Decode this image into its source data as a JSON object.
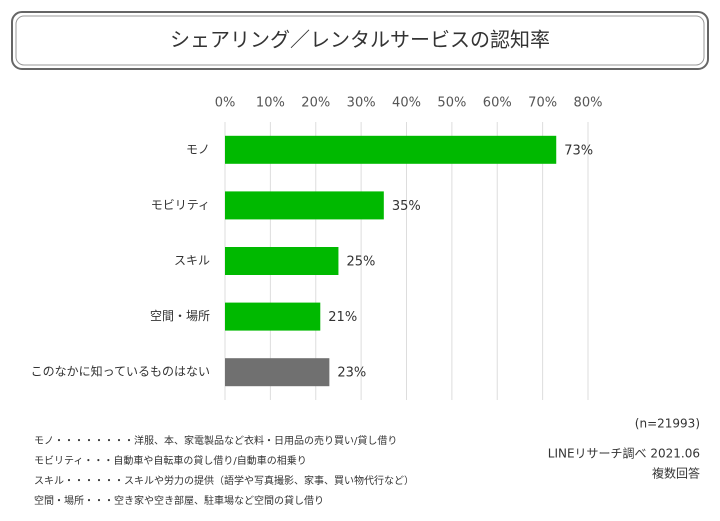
{
  "chart_data": {
    "type": "bar",
    "orientation": "horizontal",
    "title": "シェアリング／レンタルサービスの認知率",
    "categories": [
      "モノ",
      "モビリティ",
      "スキル",
      "空間・場所",
      "このなかに知っているものはない"
    ],
    "values": [
      73,
      35,
      25,
      21,
      23
    ],
    "value_labels": [
      "73%",
      "35%",
      "25%",
      "21%",
      "23%"
    ],
    "colors": [
      "#00b900",
      "#00b900",
      "#00b900",
      "#00b900",
      "#707070"
    ],
    "xlim": [
      0,
      80
    ],
    "xticks": [
      {
        "value": 0,
        "label": "0%"
      },
      {
        "value": 10,
        "label": "10%"
      },
      {
        "value": 20,
        "label": "20%"
      },
      {
        "value": 30,
        "label": "30%"
      },
      {
        "value": 40,
        "label": "40%"
      },
      {
        "value": 50,
        "label": "50%"
      },
      {
        "value": 60,
        "label": "60%"
      },
      {
        "value": 70,
        "label": "70%"
      },
      {
        "value": 80,
        "label": "80%"
      }
    ],
    "grid": true,
    "sample_size": "(n=21993)",
    "source": "LINEリサーチ調べ 2021.06",
    "answer_note": "複数回答",
    "notes": [
      "モノ・・・・・・・・洋服、本、家電製品など衣料・日用品の売り買い/貸し借り",
      "モビリティ・・・自動車や自転車の貸し借り/自動車の相乗り",
      "スキル・・・・・・スキルや労力の提供（語学や写真撮影、家事、買い物代行など）",
      "空間・場所・・・空き家や空き部屋、駐車場など空間の貸し借り"
    ]
  }
}
